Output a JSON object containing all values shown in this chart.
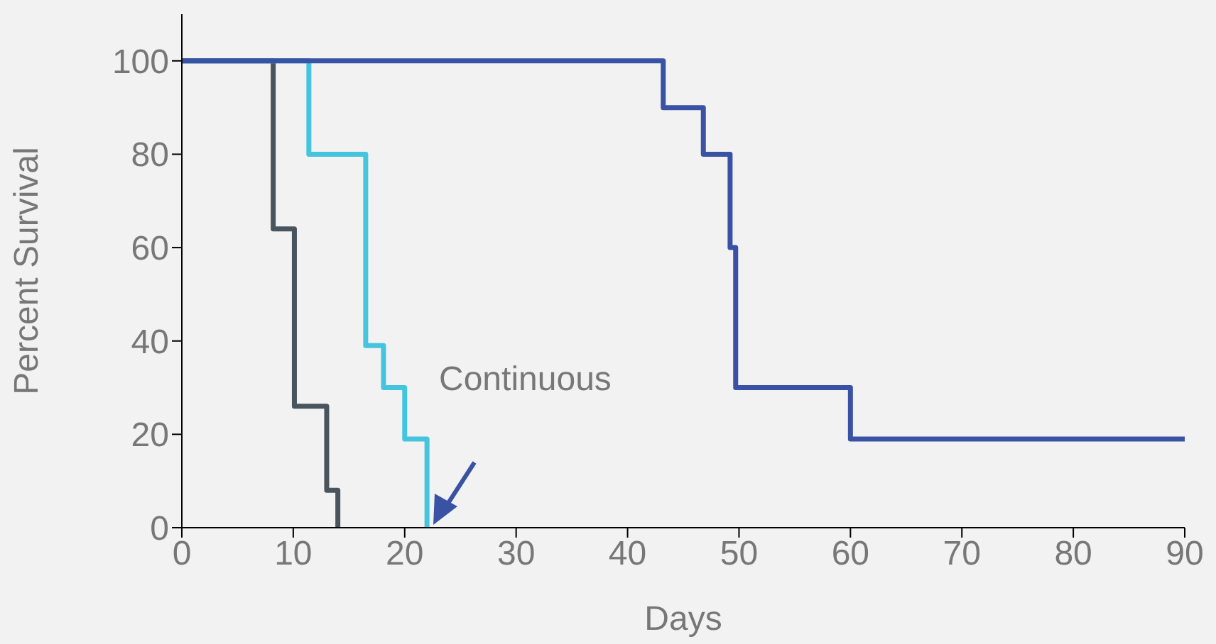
{
  "chart_data": {
    "type": "step",
    "xlabel": "Days",
    "ylabel": "Percent Survival",
    "xlim": [
      0,
      90
    ],
    "xticks": [
      0,
      10,
      20,
      30,
      40,
      50,
      60,
      70,
      80,
      90
    ],
    "ylim": [
      0,
      110
    ],
    "yticks": [
      0,
      20,
      40,
      60,
      80,
      100
    ],
    "grid": false,
    "legend": false,
    "series": [
      {
        "color": "#4a545c",
        "x": [
          0,
          8.2,
          10.1,
          13,
          14,
          14
        ],
        "values": [
          100,
          64,
          26,
          8,
          0,
          0
        ]
      },
      {
        "color": "#45c4dd",
        "x": [
          0,
          11.4,
          16.5,
          18.1,
          20,
          22,
          22
        ],
        "values": [
          100,
          80,
          39,
          30,
          19,
          0,
          0
        ]
      },
      {
        "color": "#3a52a4",
        "x": [
          0,
          43.2,
          46.8,
          49.2,
          49.7,
          60,
          90
        ],
        "values": [
          100,
          90,
          80,
          60,
          30,
          19,
          19
        ]
      }
    ],
    "annotations": [
      "Continuous"
    ]
  }
}
